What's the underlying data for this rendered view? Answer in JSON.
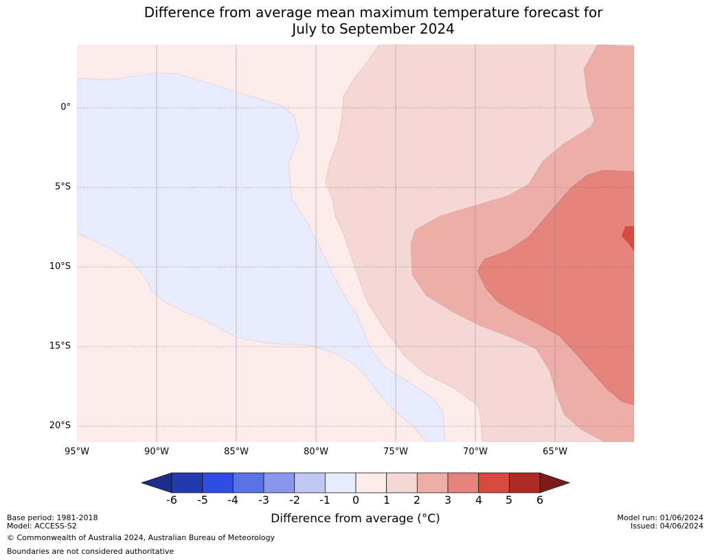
{
  "title_line1": "Difference from average mean maximum temperature forecast for",
  "title_line2": "July to September 2024",
  "colors": {
    "deep_blue": "#1f2d8a",
    "blue_6": "#253aad",
    "blue_5": "#2f4de0",
    "blue_4": "#5a72e4",
    "blue_3": "#8898ec",
    "blue_2": "#c2c8f6",
    "blue_1": "#e8ebfb",
    "red_0_1": "#fbebea",
    "red_1_2": "#f5d7d5",
    "red_2_3": "#edaeaa",
    "red_3_4": "#e5847d",
    "red_4_5": "#d84a3f",
    "red_5_6": "#ad2b23",
    "deep_red": "#7a1d1a"
  },
  "lat_labels": [
    "0°",
    "5°S",
    "10°S",
    "15°S",
    "20°S"
  ],
  "lon_labels": [
    "95°W",
    "90°W",
    "85°W",
    "80°W",
    "75°W",
    "70°W",
    "65°W"
  ],
  "colorbar": {
    "ticks": [
      "-6",
      "-5",
      "-4",
      "-3",
      "-2",
      "-1",
      "0",
      "1",
      "2",
      "3",
      "4",
      "5",
      "6"
    ],
    "label": "Difference from average (°C)"
  },
  "footer": {
    "base_period": "Base period: 1981-2018",
    "model": "Model: ACCESS-S2",
    "copyright": "© Commonwealth of Australia 2024, Australian Bureau of Meteorology",
    "boundaries": "Boundaries are not considered authoritative",
    "model_run": "Model run: 01/06/2024",
    "issued": "Issued: 04/06/2024"
  }
}
